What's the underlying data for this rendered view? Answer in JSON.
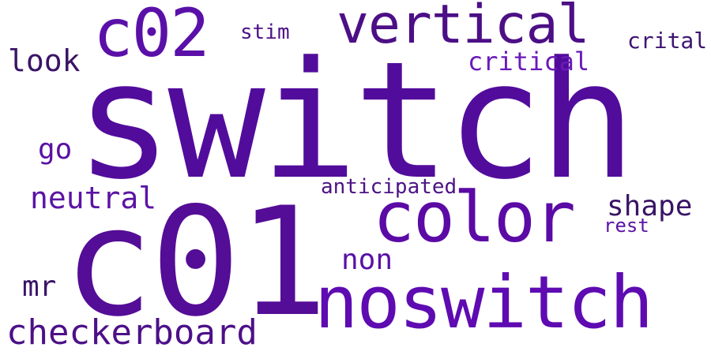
{
  "wordcloud": {
    "words": {
      "switch": "switch",
      "c01": "c01",
      "noswitch": "noswitch",
      "c02": "c02",
      "vertical": "vertical",
      "color": "color",
      "checkerboard": "checkerboard",
      "neutral": "neutral",
      "look": "look",
      "go": "go",
      "mr": "mr",
      "shape": "shape",
      "non": "non",
      "critical": "critical",
      "crital": "crital",
      "stim": "stim",
      "anticipated": "anticipated",
      "rest": "rest"
    },
    "colors": {
      "dark_purple": "#3a1466",
      "purple": "#520c9c",
      "violet": "#5e0bb2"
    }
  }
}
